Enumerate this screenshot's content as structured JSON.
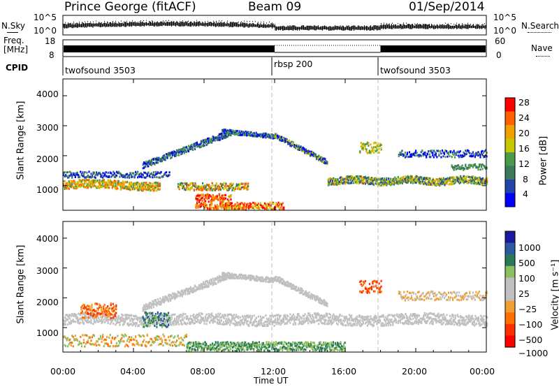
{
  "header": {
    "station": "Prince George (fitACF)",
    "beam": "Beam 09",
    "date": "01/Sep/2014"
  },
  "noise_panel": {
    "left_label": "N.Sky",
    "right_label": "N.Search",
    "left_ticks": [
      "10^5",
      "10^0"
    ],
    "right_ticks": [
      "10^5",
      "10^0"
    ]
  },
  "freq_panel": {
    "left_label_line1": "Freq.",
    "left_label_line2": "[MHz]",
    "right_label": "Nave",
    "left_ticks": [
      "18",
      "8"
    ],
    "right_ticks": [
      "60",
      "0"
    ]
  },
  "cpid_panel": {
    "label": "CPID",
    "segments": [
      {
        "name": "twofsound 3503",
        "start_hour": 0,
        "end_hour": 12
      },
      {
        "name": "rbsp 200",
        "start_hour": 12,
        "end_hour": 18
      },
      {
        "name": "twofsound 3503",
        "start_hour": 18,
        "end_hour": 24
      }
    ]
  },
  "time_axis": {
    "label": "Time UT",
    "ticks": [
      "00:00",
      "04:00",
      "08:00",
      "12:00",
      "16:00",
      "20:00",
      "00:00"
    ]
  },
  "colors": {
    "power_scale": [
      "#0000ff",
      "#2244aa",
      "#3a7a5a",
      "#4a9a4a",
      "#c8c800",
      "#f0a000",
      "#ff6000",
      "#ff0000"
    ],
    "velocity_scale": [
      "#1a1aa0",
      "#2a5aa0",
      "#2a7a5a",
      "#8ac060",
      "#c0c0c0",
      "#c0c0c0",
      "#f0a030",
      "#ff7000",
      "#ff3000",
      "#ff0000"
    ]
  },
  "chart_data": [
    {
      "type": "heatmap",
      "title": "",
      "xlabel": "",
      "ylabel": "Slant Range [km]",
      "xlim": [
        0,
        24
      ],
      "ylim": [
        180,
        4560
      ],
      "y_ticks": [
        "4000",
        "3000",
        "2000",
        "1000"
      ],
      "colorbar": {
        "label": "Power [dB]",
        "ticks": [
          "28",
          "24",
          "20",
          "16",
          "12",
          "8",
          "4"
        ],
        "range": [
          0,
          32
        ]
      }
    },
    {
      "type": "heatmap",
      "title": "",
      "xlabel": "Time UT",
      "ylabel": "Slant Range [km]",
      "xlim": [
        0,
        24
      ],
      "ylim": [
        180,
        4560
      ],
      "y_ticks": [
        "4000",
        "3000",
        "2000",
        "1000"
      ],
      "colorbar": {
        "label": "Velocity [m s⁻¹]",
        "ticks": [
          "1000",
          "500",
          "100",
          "25",
          "−25",
          "−100",
          "−500",
          "−1000"
        ]
      }
    }
  ]
}
